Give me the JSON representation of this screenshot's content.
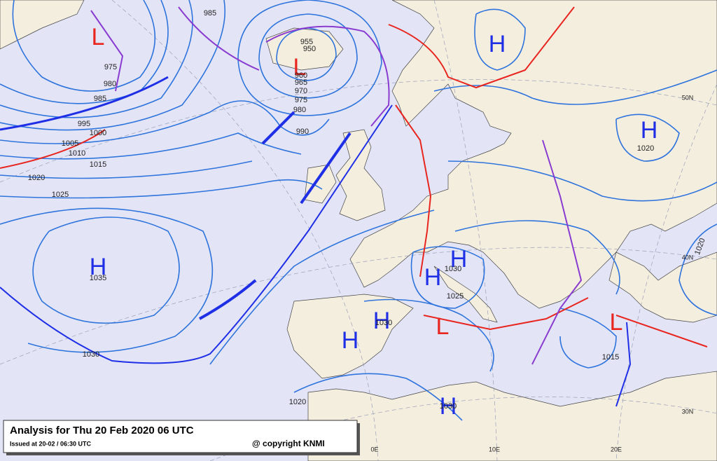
{
  "map": {
    "title": "Analysis for Thu 20 Feb 2020 06 UTC",
    "issued": "Issued at 20-02 / 06:30 UTC",
    "copyright": "@ copyright KNMI",
    "colors": {
      "H": "#1f2fe6",
      "L": "#e8251f",
      "isobar": "#2f74dc",
      "sea": "#e3e5f7",
      "land": "#f4eedf"
    },
    "pressure_systems": [
      "L",
      "L",
      "H",
      "H",
      "H",
      "H",
      "H",
      "H",
      "H",
      "L",
      "L",
      "H"
    ],
    "isobar_labels": [
      985,
      975,
      980,
      985,
      995,
      1000,
      1005,
      1010,
      1015,
      1020,
      1025,
      990,
      955,
      950,
      960,
      965,
      970,
      975,
      980,
      1035,
      1030,
      1020,
      1020,
      1020,
      1030,
      1025,
      1030,
      1030,
      1015
    ],
    "grid_labels": [
      "50N",
      "40N",
      "30N",
      "0E",
      "10E",
      "20E"
    ]
  }
}
